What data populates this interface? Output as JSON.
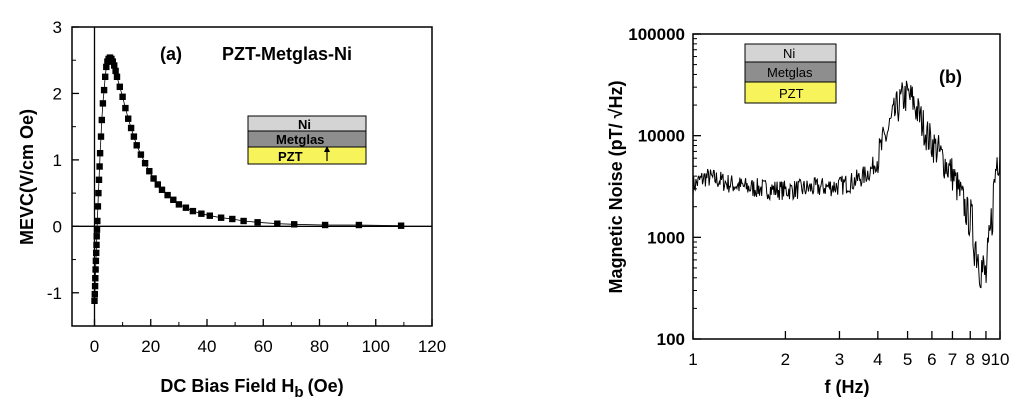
{
  "chart_data": [
    {
      "type": "scatter",
      "panel_label": "(a)",
      "title": "PZT-Metglas-Ni",
      "xlabel": "DC Bias Field H",
      "xlabel_sub": "b",
      "xlabel_unit": "(Oe)",
      "ylabel": "MEVC(V/cm Oe)",
      "xlim": [
        -8,
        120
      ],
      "ylim": [
        -1.5,
        3
      ],
      "x_ticks": [
        0,
        20,
        40,
        60,
        80,
        100,
        120
      ],
      "y_ticks": [
        -1,
        0,
        1,
        2,
        3
      ],
      "inset_layers": [
        "Ni",
        "Metglas",
        "PZT"
      ],
      "inset_colors": [
        "#d4d4d4",
        "#8e8e8e",
        "#f7f35a"
      ],
      "series": [
        {
          "x": [
            0.0,
            0.1,
            0.2,
            0.3,
            0.4,
            0.5,
            0.6,
            0.7,
            0.8,
            0.9,
            1.0,
            1.2,
            1.4,
            1.6,
            1.8,
            2.0,
            2.3,
            2.6,
            3.0,
            3.4,
            3.8,
            4.2,
            4.6,
            5.0,
            5.5,
            6.0,
            6.5,
            7.0,
            7.5,
            8.0,
            9.0,
            10.0,
            11.0,
            12.0,
            13.0,
            14.0,
            15.0,
            16.5,
            18.0,
            19.5,
            21.0,
            22.5,
            24.0,
            26.0,
            28.0,
            30.0,
            32.5,
            35.0,
            38.0,
            41.0,
            45.0,
            49.0,
            53.0,
            58.0,
            65.0,
            71.0,
            82.0,
            94.0,
            109.0
          ],
          "y": [
            -1.12,
            -1.02,
            -0.9,
            -0.78,
            -0.65,
            -0.52,
            -0.4,
            -0.28,
            -0.15,
            -0.05,
            0.08,
            0.3,
            0.5,
            0.7,
            0.9,
            1.1,
            1.35,
            1.6,
            1.85,
            2.05,
            2.25,
            2.4,
            2.48,
            2.52,
            2.54,
            2.52,
            2.48,
            2.42,
            2.34,
            2.25,
            2.1,
            1.95,
            1.78,
            1.62,
            1.48,
            1.35,
            1.22,
            1.08,
            0.95,
            0.83,
            0.72,
            0.63,
            0.55,
            0.47,
            0.4,
            0.33,
            0.28,
            0.23,
            0.19,
            0.16,
            0.13,
            0.11,
            0.08,
            0.06,
            0.04,
            0.03,
            0.02,
            0.02,
            0.01
          ]
        }
      ]
    },
    {
      "type": "line",
      "panel_label": "(b)",
      "xlabel": "f (Hz)",
      "ylabel": "Magnetic Noise (pT/ √Hz)",
      "x_scale": "log",
      "y_scale": "log",
      "xlim": [
        1,
        10
      ],
      "ylim": [
        100,
        100000
      ],
      "x_ticks": [
        1,
        2,
        3,
        4,
        5,
        6,
        7,
        8,
        9,
        10
      ],
      "x_tick_labels": [
        "1",
        "2",
        "3",
        "4",
        "5",
        "6",
        "7",
        "8",
        "9",
        "10"
      ],
      "y_ticks": [
        100,
        1000,
        10000,
        100000
      ],
      "y_tick_labels": [
        "100",
        "1000",
        "10000",
        "100000"
      ],
      "inset_layers": [
        "Ni",
        "Metglas",
        "PZT"
      ],
      "inset_colors": [
        "#d4d4d4",
        "#8e8e8e",
        "#f7f35a"
      ],
      "series": [
        {
          "x": [
            1.0,
            1.05,
            1.1,
            1.2,
            1.3,
            1.5,
            1.7,
            2.0,
            2.3,
            2.6,
            3.0,
            3.3,
            3.6,
            3.8,
            4.0,
            4.2,
            4.4,
            4.6,
            4.8,
            5.0,
            5.2,
            5.4,
            5.6,
            5.8,
            6.0,
            6.3,
            6.6,
            7.0,
            7.3,
            7.6,
            8.0,
            8.3,
            8.6,
            8.8,
            9.0,
            9.2,
            9.4,
            9.6,
            9.8,
            10.0
          ],
          "y": [
            3200,
            3600,
            3900,
            3700,
            3400,
            3100,
            3000,
            2900,
            3000,
            3100,
            3200,
            3500,
            4000,
            4600,
            6000,
            9000,
            13000,
            18000,
            23000,
            25000,
            22000,
            17000,
            13000,
            10000,
            8500,
            7000,
            5500,
            4200,
            3000,
            2200,
            1400,
            900,
            600,
            450,
            400,
            700,
            1500,
            3500,
            6500,
            8000
          ]
        }
      ]
    }
  ]
}
